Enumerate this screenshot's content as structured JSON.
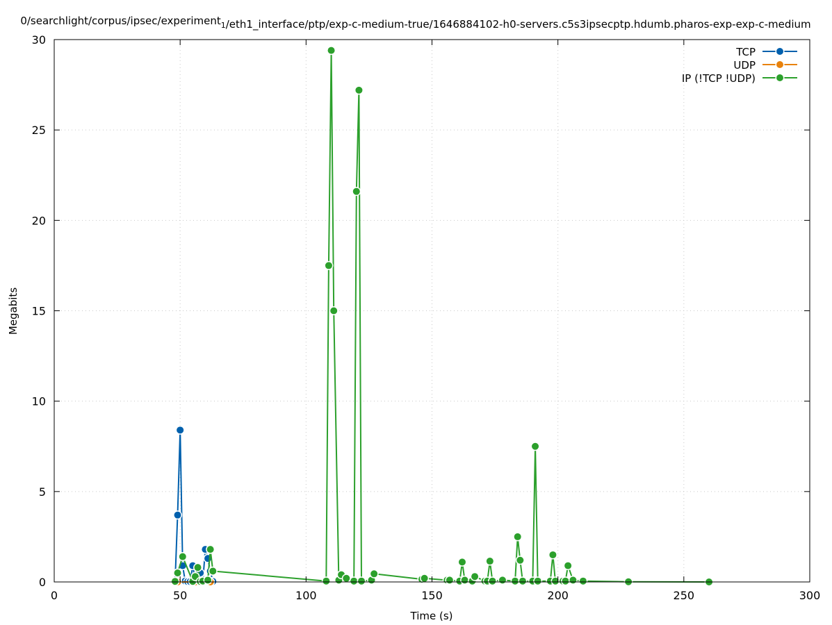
{
  "chart_data": {
    "type": "line",
    "title": "0/searchlight/corpus/ipsec/experiment_1/eth1_interface/ptp/exp-c-medium-true/1646884102-h0-servers.c5s3ipsecptp.hdumb.pharos-exp-exp-c-medium",
    "xlabel": "Time (s)",
    "ylabel": "Megabits",
    "xlim": [
      0,
      300
    ],
    "ylim": [
      0,
      30
    ],
    "xticks": [
      0,
      50,
      100,
      150,
      200,
      250,
      300
    ],
    "yticks": [
      0,
      5,
      10,
      15,
      20,
      25,
      30
    ],
    "grid": true,
    "legend_position": "top-right",
    "series": [
      {
        "name": "TCP",
        "color": "#0060ad",
        "points": [
          [
            48,
            0.03
          ],
          [
            49,
            3.7
          ],
          [
            50,
            8.4
          ],
          [
            51,
            0.9
          ],
          [
            52,
            0.05
          ],
          [
            53,
            0.02
          ],
          [
            54,
            0.02
          ],
          [
            55,
            0.9
          ],
          [
            56,
            0.05
          ],
          [
            57,
            0.03
          ],
          [
            58,
            0.5
          ],
          [
            59,
            0.03
          ],
          [
            60,
            1.8
          ],
          [
            61,
            1.3
          ],
          [
            62,
            0.6
          ],
          [
            63,
            0.03
          ]
        ]
      },
      {
        "name": "UDP",
        "color": "#e8820c",
        "points": [
          [
            49,
            0.0
          ],
          [
            56,
            0.0
          ],
          [
            62,
            0.0
          ]
        ]
      },
      {
        "name": "IP (!TCP  !UDP)",
        "color": "#2ca02c",
        "points": [
          [
            48,
            0.03
          ],
          [
            49,
            0.5
          ],
          [
            51,
            1.4
          ],
          [
            55,
            0.03
          ],
          [
            56,
            0.3
          ],
          [
            57,
            0.8
          ],
          [
            58,
            0.03
          ],
          [
            59,
            0.05
          ],
          [
            61,
            0.1
          ],
          [
            62,
            1.8
          ],
          [
            63,
            0.6
          ],
          [
            108,
            0.05
          ],
          [
            109,
            17.5
          ],
          [
            110,
            29.4
          ],
          [
            111,
            15.0
          ],
          [
            113,
            0.1
          ],
          [
            114,
            0.4
          ],
          [
            116,
            0.2
          ],
          [
            119,
            0.05
          ],
          [
            120,
            21.6
          ],
          [
            121,
            27.2
          ],
          [
            122,
            0.05
          ],
          [
            126,
            0.1
          ],
          [
            127,
            0.45
          ],
          [
            146,
            0.15
          ],
          [
            147,
            0.2
          ],
          [
            156,
            0.1
          ],
          [
            157,
            0.1
          ],
          [
            161,
            0.05
          ],
          [
            162,
            1.1
          ],
          [
            163,
            0.1
          ],
          [
            166,
            0.05
          ],
          [
            167,
            0.3
          ],
          [
            171,
            0.05
          ],
          [
            172,
            0.05
          ],
          [
            173,
            1.15
          ],
          [
            174,
            0.05
          ],
          [
            178,
            0.1
          ],
          [
            183,
            0.05
          ],
          [
            184,
            2.5
          ],
          [
            185,
            1.2
          ],
          [
            186,
            0.05
          ],
          [
            190,
            0.05
          ],
          [
            191,
            7.5
          ],
          [
            192,
            0.05
          ],
          [
            197,
            0.05
          ],
          [
            198,
            1.5
          ],
          [
            199,
            0.05
          ],
          [
            202,
            0.05
          ],
          [
            203,
            0.05
          ],
          [
            204,
            0.9
          ],
          [
            206,
            0.1
          ],
          [
            210,
            0.05
          ],
          [
            228,
            0.01
          ],
          [
            260,
            0.0
          ]
        ]
      }
    ]
  }
}
